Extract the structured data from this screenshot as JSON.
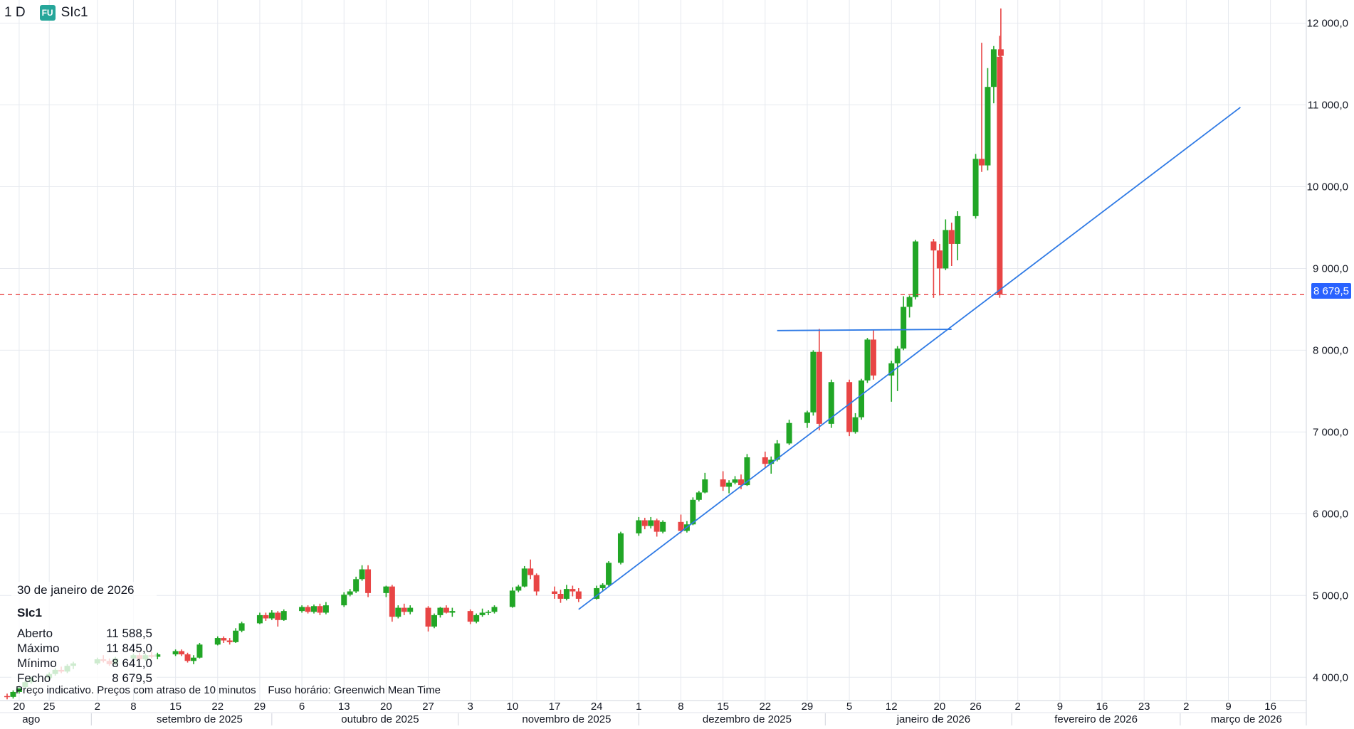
{
  "header": {
    "timeframe": "1 D",
    "badge": "FU",
    "symbol": "SIc1"
  },
  "ohlc": {
    "date": "30 de janeiro de 2026",
    "symbol": "SIc1",
    "rows": [
      {
        "label": "Aberto",
        "value": "11 588,5"
      },
      {
        "label": "Máximo",
        "value": "11 845,0"
      },
      {
        "label": "Mínimo",
        "value": "8 641,0"
      },
      {
        "label": "Fecho",
        "value": "8 679,5"
      }
    ]
  },
  "footer": {
    "note": "Preço indicativo. Preços com atraso de 10 minutos",
    "timezone": "Fuso horário: Greenwich Mean Time"
  },
  "last_price_label": "8 679,5",
  "colors": {
    "up": "#21a626",
    "down": "#e84545",
    "trendline": "#2f7ae5",
    "last_price": "#e84545",
    "last_price_tag": "#2962ff"
  },
  "chart_data": {
    "type": "candlestick",
    "timeframe": "1 D",
    "symbol": "SIc1",
    "y_axis": {
      "ticks": [
        4000,
        5000,
        6000,
        7000,
        8000,
        9000,
        10000,
        11000,
        12000
      ],
      "tick_labels": [
        "4 000,0",
        "5 000,0",
        "6 000,0",
        "7 000,0",
        "8 000,0",
        "9 000,0",
        "10 000,0",
        "11 000,0",
        "12 000,0"
      ],
      "range": [
        3550,
        12270
      ],
      "position": "right"
    },
    "x_axis": {
      "range": [
        "2025-08-18",
        "2026-03-19"
      ],
      "day_ticks": [
        {
          "date": "2025-08-20",
          "label": "20"
        },
        {
          "date": "2025-08-25",
          "label": "25"
        },
        {
          "date": "2025-09-02",
          "label": "2"
        },
        {
          "date": "2025-09-08",
          "label": "8"
        },
        {
          "date": "2025-09-15",
          "label": "15"
        },
        {
          "date": "2025-09-22",
          "label": "22"
        },
        {
          "date": "2025-09-29",
          "label": "29"
        },
        {
          "date": "2025-10-06",
          "label": "6"
        },
        {
          "date": "2025-10-13",
          "label": "13"
        },
        {
          "date": "2025-10-20",
          "label": "20"
        },
        {
          "date": "2025-10-27",
          "label": "27"
        },
        {
          "date": "2025-11-03",
          "label": "3"
        },
        {
          "date": "2025-11-10",
          "label": "10"
        },
        {
          "date": "2025-11-17",
          "label": "17"
        },
        {
          "date": "2025-11-24",
          "label": "24"
        },
        {
          "date": "2025-12-01",
          "label": "1"
        },
        {
          "date": "2025-12-08",
          "label": "8"
        },
        {
          "date": "2025-12-15",
          "label": "15"
        },
        {
          "date": "2025-12-22",
          "label": "22"
        },
        {
          "date": "2025-12-29",
          "label": "29"
        },
        {
          "date": "2026-01-05",
          "label": "5"
        },
        {
          "date": "2026-01-12",
          "label": "12"
        },
        {
          "date": "2026-01-20",
          "label": "20"
        },
        {
          "date": "2026-01-26",
          "label": "26"
        },
        {
          "date": "2026-02-02",
          "label": "2"
        },
        {
          "date": "2026-02-09",
          "label": "9"
        },
        {
          "date": "2026-02-16",
          "label": "16"
        },
        {
          "date": "2026-02-23",
          "label": "23"
        },
        {
          "date": "2026-03-02",
          "label": "2"
        },
        {
          "date": "2026-03-09",
          "label": "9"
        },
        {
          "date": "2026-03-16",
          "label": "16"
        }
      ],
      "month_labels": [
        {
          "date": "2025-08-22",
          "label": "ago"
        },
        {
          "date": "2025-09-19",
          "label": "setembro de 2025"
        },
        {
          "date": "2025-10-19",
          "label": "outubro de 2025"
        },
        {
          "date": "2025-11-19",
          "label": "novembro de 2025"
        },
        {
          "date": "2025-12-19",
          "label": "dezembro de 2025"
        },
        {
          "date": "2026-01-19",
          "label": "janeiro de 2026"
        },
        {
          "date": "2026-02-15",
          "label": "fevereiro de 2026"
        },
        {
          "date": "2026-03-12",
          "label": "março de 2026"
        }
      ],
      "month_separators": [
        "2025-09-01",
        "2025-10-01",
        "2025-11-01",
        "2025-12-01",
        "2026-01-01",
        "2026-02-01",
        "2026-03-01"
      ]
    },
    "grid": true,
    "candles": [
      {
        "date": "2025-08-18",
        "o": 3770,
        "h": 3800,
        "l": 3730,
        "c": 3760
      },
      {
        "date": "2025-08-19",
        "o": 3760,
        "h": 3840,
        "l": 3740,
        "c": 3820
      },
      {
        "date": "2025-08-20",
        "o": 3820,
        "h": 3900,
        "l": 3800,
        "c": 3880
      },
      {
        "date": "2025-08-21",
        "o": 3880,
        "h": 3960,
        "l": 3860,
        "c": 3940
      },
      {
        "date": "2025-08-22",
        "o": 3940,
        "h": 4010,
        "l": 3920,
        "c": 3990
      },
      {
        "date": "2025-08-25",
        "o": 3990,
        "h": 4060,
        "l": 3970,
        "c": 4040
      },
      {
        "date": "2025-08-26",
        "o": 4040,
        "h": 4110,
        "l": 4020,
        "c": 4090
      },
      {
        "date": "2025-08-27",
        "o": 4090,
        "h": 4130,
        "l": 4050,
        "c": 4070
      },
      {
        "date": "2025-08-28",
        "o": 4070,
        "h": 4160,
        "l": 4050,
        "c": 4140
      },
      {
        "date": "2025-08-29",
        "o": 4140,
        "h": 4190,
        "l": 4100,
        "c": 4170
      },
      {
        "date": "2025-09-02",
        "o": 4170,
        "h": 4240,
        "l": 4150,
        "c": 4220
      },
      {
        "date": "2025-09-03",
        "o": 4220,
        "h": 4270,
        "l": 4180,
        "c": 4200
      },
      {
        "date": "2025-09-04",
        "o": 4200,
        "h": 4230,
        "l": 4140,
        "c": 4160
      },
      {
        "date": "2025-09-05",
        "o": 4160,
        "h": 4250,
        "l": 4150,
        "c": 4230
      },
      {
        "date": "2025-09-08",
        "o": 4230,
        "h": 4290,
        "l": 4200,
        "c": 4270
      },
      {
        "date": "2025-09-09",
        "o": 4270,
        "h": 4300,
        "l": 4200,
        "c": 4220
      },
      {
        "date": "2025-09-10",
        "o": 4220,
        "h": 4290,
        "l": 4200,
        "c": 4270
      },
      {
        "date": "2025-09-11",
        "o": 4270,
        "h": 4310,
        "l": 4230,
        "c": 4250
      },
      {
        "date": "2025-09-12",
        "o": 4250,
        "h": 4300,
        "l": 4220,
        "c": 4280
      },
      {
        "date": "2025-09-15",
        "o": 4280,
        "h": 4340,
        "l": 4260,
        "c": 4320
      },
      {
        "date": "2025-09-16",
        "o": 4320,
        "h": 4340,
        "l": 4260,
        "c": 4280
      },
      {
        "date": "2025-09-17",
        "o": 4280,
        "h": 4300,
        "l": 4180,
        "c": 4200
      },
      {
        "date": "2025-09-18",
        "o": 4200,
        "h": 4270,
        "l": 4160,
        "c": 4240
      },
      {
        "date": "2025-09-19",
        "o": 4240,
        "h": 4420,
        "l": 4230,
        "c": 4400
      },
      {
        "date": "2025-09-22",
        "o": 4400,
        "h": 4500,
        "l": 4390,
        "c": 4480
      },
      {
        "date": "2025-09-23",
        "o": 4480,
        "h": 4500,
        "l": 4420,
        "c": 4450
      },
      {
        "date": "2025-09-24",
        "o": 4450,
        "h": 4480,
        "l": 4400,
        "c": 4430
      },
      {
        "date": "2025-09-25",
        "o": 4430,
        "h": 4600,
        "l": 4420,
        "c": 4570
      },
      {
        "date": "2025-09-26",
        "o": 4570,
        "h": 4680,
        "l": 4550,
        "c": 4660
      },
      {
        "date": "2025-09-29",
        "o": 4660,
        "h": 4790,
        "l": 4650,
        "c": 4760
      },
      {
        "date": "2025-09-30",
        "o": 4760,
        "h": 4790,
        "l": 4690,
        "c": 4720
      },
      {
        "date": "2025-10-01",
        "o": 4720,
        "h": 4820,
        "l": 4700,
        "c": 4790
      },
      {
        "date": "2025-10-02",
        "o": 4790,
        "h": 4810,
        "l": 4620,
        "c": 4700
      },
      {
        "date": "2025-10-03",
        "o": 4700,
        "h": 4830,
        "l": 4690,
        "c": 4810
      },
      {
        "date": "2025-10-06",
        "o": 4810,
        "h": 4880,
        "l": 4790,
        "c": 4860
      },
      {
        "date": "2025-10-07",
        "o": 4860,
        "h": 4880,
        "l": 4780,
        "c": 4800
      },
      {
        "date": "2025-10-08",
        "o": 4800,
        "h": 4890,
        "l": 4780,
        "c": 4870
      },
      {
        "date": "2025-10-09",
        "o": 4870,
        "h": 4900,
        "l": 4760,
        "c": 4790
      },
      {
        "date": "2025-10-10",
        "o": 4790,
        "h": 4920,
        "l": 4770,
        "c": 4880
      },
      {
        "date": "2025-10-13",
        "o": 4880,
        "h": 5040,
        "l": 4860,
        "c": 5010
      },
      {
        "date": "2025-10-14",
        "o": 5010,
        "h": 5080,
        "l": 4990,
        "c": 5050
      },
      {
        "date": "2025-10-15",
        "o": 5050,
        "h": 5230,
        "l": 5030,
        "c": 5200
      },
      {
        "date": "2025-10-16",
        "o": 5200,
        "h": 5370,
        "l": 5180,
        "c": 5320
      },
      {
        "date": "2025-10-17",
        "o": 5320,
        "h": 5370,
        "l": 4980,
        "c": 5030
      },
      {
        "date": "2025-10-20",
        "o": 5030,
        "h": 5120,
        "l": 4980,
        "c": 5110
      },
      {
        "date": "2025-10-21",
        "o": 5110,
        "h": 5130,
        "l": 4680,
        "c": 4740
      },
      {
        "date": "2025-10-22",
        "o": 4740,
        "h": 4880,
        "l": 4720,
        "c": 4850
      },
      {
        "date": "2025-10-23",
        "o": 4850,
        "h": 4900,
        "l": 4760,
        "c": 4800
      },
      {
        "date": "2025-10-24",
        "o": 4800,
        "h": 4880,
        "l": 4770,
        "c": 4850
      },
      {
        "date": "2025-10-27",
        "o": 4850,
        "h": 4870,
        "l": 4560,
        "c": 4620
      },
      {
        "date": "2025-10-28",
        "o": 4620,
        "h": 4780,
        "l": 4600,
        "c": 4760
      },
      {
        "date": "2025-10-29",
        "o": 4760,
        "h": 4860,
        "l": 4730,
        "c": 4850
      },
      {
        "date": "2025-10-30",
        "o": 4850,
        "h": 4880,
        "l": 4780,
        "c": 4790
      },
      {
        "date": "2025-10-31",
        "o": 4790,
        "h": 4850,
        "l": 4740,
        "c": 4810
      },
      {
        "date": "2025-11-03",
        "o": 4810,
        "h": 4830,
        "l": 4650,
        "c": 4680
      },
      {
        "date": "2025-11-04",
        "o": 4680,
        "h": 4780,
        "l": 4660,
        "c": 4760
      },
      {
        "date": "2025-11-05",
        "o": 4760,
        "h": 4840,
        "l": 4740,
        "c": 4790
      },
      {
        "date": "2025-11-06",
        "o": 4790,
        "h": 4820,
        "l": 4760,
        "c": 4800
      },
      {
        "date": "2025-11-07",
        "o": 4800,
        "h": 4880,
        "l": 4780,
        "c": 4860
      },
      {
        "date": "2025-11-10",
        "o": 4860,
        "h": 5100,
        "l": 4850,
        "c": 5060
      },
      {
        "date": "2025-11-11",
        "o": 5060,
        "h": 5130,
        "l": 5040,
        "c": 5110
      },
      {
        "date": "2025-11-12",
        "o": 5110,
        "h": 5360,
        "l": 5100,
        "c": 5330
      },
      {
        "date": "2025-11-13",
        "o": 5330,
        "h": 5440,
        "l": 5200,
        "c": 5250
      },
      {
        "date": "2025-11-14",
        "o": 5250,
        "h": 5270,
        "l": 5000,
        "c": 5050
      },
      {
        "date": "2025-11-17",
        "o": 5050,
        "h": 5110,
        "l": 4960,
        "c": 5020
      },
      {
        "date": "2025-11-18",
        "o": 5020,
        "h": 5070,
        "l": 4910,
        "c": 4960
      },
      {
        "date": "2025-11-19",
        "o": 4960,
        "h": 5130,
        "l": 4940,
        "c": 5080
      },
      {
        "date": "2025-11-20",
        "o": 5080,
        "h": 5120,
        "l": 4990,
        "c": 5050
      },
      {
        "date": "2025-11-21",
        "o": 5050,
        "h": 5090,
        "l": 4920,
        "c": 4960
      },
      {
        "date": "2025-11-24",
        "o": 4960,
        "h": 5120,
        "l": 4950,
        "c": 5090
      },
      {
        "date": "2025-11-25",
        "o": 5090,
        "h": 5150,
        "l": 5060,
        "c": 5130
      },
      {
        "date": "2025-11-26",
        "o": 5130,
        "h": 5420,
        "l": 5110,
        "c": 5400
      },
      {
        "date": "2025-11-28",
        "o": 5400,
        "h": 5780,
        "l": 5380,
        "c": 5760
      },
      {
        "date": "2025-12-01",
        "o": 5760,
        "h": 5960,
        "l": 5730,
        "c": 5920
      },
      {
        "date": "2025-12-02",
        "o": 5920,
        "h": 5950,
        "l": 5810,
        "c": 5850
      },
      {
        "date": "2025-12-03",
        "o": 5850,
        "h": 5960,
        "l": 5820,
        "c": 5920
      },
      {
        "date": "2025-12-04",
        "o": 5920,
        "h": 5940,
        "l": 5720,
        "c": 5780
      },
      {
        "date": "2025-12-05",
        "o": 5780,
        "h": 5920,
        "l": 5760,
        "c": 5900
      },
      {
        "date": "2025-12-08",
        "o": 5900,
        "h": 5990,
        "l": 5760,
        "c": 5790
      },
      {
        "date": "2025-12-09",
        "o": 5790,
        "h": 5910,
        "l": 5770,
        "c": 5870
      },
      {
        "date": "2025-12-10",
        "o": 5870,
        "h": 6200,
        "l": 5860,
        "c": 6170
      },
      {
        "date": "2025-12-11",
        "o": 6170,
        "h": 6280,
        "l": 6150,
        "c": 6260
      },
      {
        "date": "2025-12-12",
        "o": 6260,
        "h": 6500,
        "l": 6250,
        "c": 6420
      },
      {
        "date": "2025-12-15",
        "o": 6420,
        "h": 6520,
        "l": 6280,
        "c": 6330
      },
      {
        "date": "2025-12-16",
        "o": 6330,
        "h": 6410,
        "l": 6250,
        "c": 6380
      },
      {
        "date": "2025-12-17",
        "o": 6380,
        "h": 6460,
        "l": 6360,
        "c": 6420
      },
      {
        "date": "2025-12-18",
        "o": 6420,
        "h": 6480,
        "l": 6300,
        "c": 6350
      },
      {
        "date": "2025-12-19",
        "o": 6350,
        "h": 6730,
        "l": 6340,
        "c": 6690
      },
      {
        "date": "2025-12-22",
        "o": 6690,
        "h": 6760,
        "l": 6560,
        "c": 6610
      },
      {
        "date": "2025-12-23",
        "o": 6610,
        "h": 6700,
        "l": 6490,
        "c": 6660
      },
      {
        "date": "2025-12-24",
        "o": 6660,
        "h": 6900,
        "l": 6640,
        "c": 6860
      },
      {
        "date": "2025-12-26",
        "o": 6860,
        "h": 7150,
        "l": 6840,
        "c": 7110
      },
      {
        "date": "2025-12-29",
        "o": 7110,
        "h": 7260,
        "l": 7050,
        "c": 7240
      },
      {
        "date": "2025-12-30",
        "o": 7240,
        "h": 8000,
        "l": 7200,
        "c": 7980
      },
      {
        "date": "2025-12-31",
        "o": 7980,
        "h": 8260,
        "l": 7020,
        "c": 7100
      },
      {
        "date": "2026-01-02",
        "o": 7100,
        "h": 7640,
        "l": 7050,
        "c": 7610
      },
      {
        "date": "2026-01-05",
        "o": 7610,
        "h": 7640,
        "l": 6950,
        "c": 7000
      },
      {
        "date": "2026-01-06",
        "o": 7000,
        "h": 7230,
        "l": 6980,
        "c": 7180
      },
      {
        "date": "2026-01-07",
        "o": 7180,
        "h": 7650,
        "l": 7150,
        "c": 7630
      },
      {
        "date": "2026-01-08",
        "o": 7630,
        "h": 8150,
        "l": 7600,
        "c": 8130
      },
      {
        "date": "2026-01-09",
        "o": 8130,
        "h": 8250,
        "l": 7640,
        "c": 7690
      },
      {
        "date": "2026-01-12",
        "o": 7690,
        "h": 7870,
        "l": 7370,
        "c": 7840
      },
      {
        "date": "2026-01-13",
        "o": 7840,
        "h": 8050,
        "l": 7500,
        "c": 8020
      },
      {
        "date": "2026-01-14",
        "o": 8020,
        "h": 8660,
        "l": 8000,
        "c": 8530
      },
      {
        "date": "2026-01-15",
        "o": 8530,
        "h": 8670,
        "l": 8400,
        "c": 8650
      },
      {
        "date": "2026-01-16",
        "o": 8650,
        "h": 9350,
        "l": 8620,
        "c": 9330
      },
      {
        "date": "2026-01-19",
        "o": 9330,
        "h": 9360,
        "l": 8640,
        "c": 9220
      },
      {
        "date": "2026-01-20",
        "o": 9220,
        "h": 9300,
        "l": 8670,
        "c": 9000
      },
      {
        "date": "2026-01-21",
        "o": 9000,
        "h": 9600,
        "l": 8980,
        "c": 9470
      },
      {
        "date": "2026-01-22",
        "o": 9470,
        "h": 9560,
        "l": 9030,
        "c": 9300
      },
      {
        "date": "2026-01-23",
        "o": 9300,
        "h": 9700,
        "l": 9100,
        "c": 9640
      },
      {
        "date": "2026-01-26",
        "o": 9640,
        "h": 10400,
        "l": 9610,
        "c": 10340
      },
      {
        "date": "2026-01-27",
        "o": 10340,
        "h": 11760,
        "l": 10180,
        "c": 10260
      },
      {
        "date": "2026-01-28",
        "o": 10260,
        "h": 11450,
        "l": 10200,
        "c": 11220
      },
      {
        "date": "2026-01-29",
        "o": 11220,
        "h": 11720,
        "l": 11020,
        "c": 11680
      },
      {
        "date": "2026-01-29",
        "o": 11680,
        "h": 12180,
        "l": 10660,
        "c": 11600
      },
      {
        "date": "2026-01-30",
        "o": 11588.5,
        "h": 11845.0,
        "l": 8641.0,
        "c": 8679.5
      }
    ],
    "last_price": 8679.5,
    "trendlines": [
      {
        "from": {
          "date": "2025-11-21",
          "value": 4830
        },
        "to": {
          "date": "2026-03-11",
          "value": 10970
        }
      },
      {
        "from": {
          "date": "2025-12-24",
          "value": 8240
        },
        "to": {
          "date": "2026-01-22",
          "value": 8255
        }
      }
    ]
  }
}
